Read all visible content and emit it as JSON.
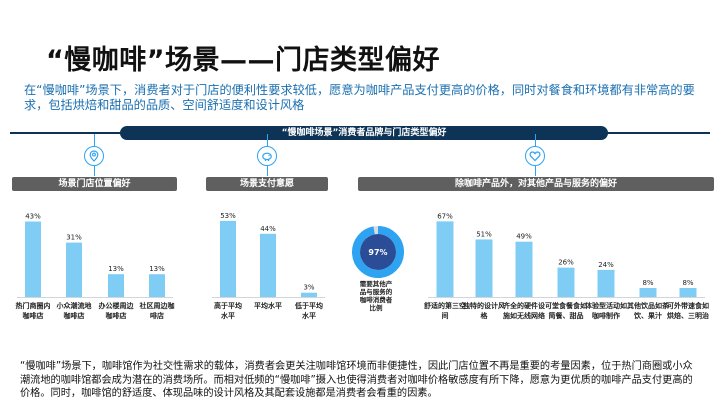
{
  "page": {
    "title": "“慢咖啡”场景——门店类型偏好",
    "subtitle": "在“慢咖啡”场景下，消费者对于门店的便利性要求较低，愿意为咖啡产品支付更高的价格，同时对餐食和环境都有非常高的要求，包括烘焙和甜品的品质、空间舒适度和设计风格",
    "banner": "“慢咖啡场景”消费者品牌与门店类型偏好",
    "footer": "“慢咖啡”场景下，咖啡馆作为社交性需求的载体，消费者会更关注咖啡馆环境而非便捷性，因此门店位置不再是重要的考量因素，位于热门商圈或小众潮流地的咖啡馆都会成为潜在的消费场所。而相对低频的“慢咖啡”摄入也使得消费者对咖啡价格敏感度有所下降，愿意为更优质的咖啡产品支付更高的价格。同时，咖啡馆的舒适度、体现品味的设计风格及其配套设施都是消费者会看重的因素。",
    "icons": [
      "location-pin-icon",
      "piggy-bank-icon",
      "heart-icon"
    ],
    "colors": {
      "accent": "#2ea3f2",
      "bar": "#7fcdf4",
      "banner": "#0d3457",
      "label_bg": "#5f5f5f",
      "pie_dark": "#2b4d97"
    }
  },
  "chart_data": [
    {
      "type": "bar",
      "title": "场景门店位置偏好",
      "categories": [
        "热门商圈内咖啡店",
        "小众潮流地咖啡店",
        "办公楼周边咖啡店",
        "社区周边咖啡店"
      ],
      "values": [
        43,
        31,
        13,
        13
      ],
      "value_labels": [
        "43%",
        "31%",
        "13%",
        "13%"
      ],
      "ylim": [
        0,
        45
      ]
    },
    {
      "type": "bar",
      "title": "场景支付意愿",
      "categories": [
        "高于平均水平",
        "平均水平",
        "低于平均水平"
      ],
      "values": [
        53,
        44,
        3
      ],
      "value_labels": [
        "53%",
        "44%",
        "3%"
      ],
      "ylim": [
        0,
        55
      ]
    },
    {
      "type": "pie",
      "value": 97,
      "value_label": "97%",
      "label": "需要其他产品与服务的咖啡消费者比例"
    },
    {
      "type": "bar",
      "title": "除咖啡产品外，对其他产品与服务的偏好",
      "categories": [
        "舒适的第三空间",
        "独特的设计风格",
        "齐全的硬件设施如无线网络",
        "可堂食餐食如简餐、甜品",
        "体验型活动如咖啡制作",
        "其他饮品如茶饮、果汁",
        "可外带速食如烘焙、三明治"
      ],
      "values": [
        67,
        51,
        49,
        26,
        24,
        8,
        8
      ],
      "value_labels": [
        "67%",
        "51%",
        "49%",
        "26%",
        "24%",
        "8%",
        "8%"
      ],
      "ylim": [
        0,
        70
      ]
    }
  ]
}
